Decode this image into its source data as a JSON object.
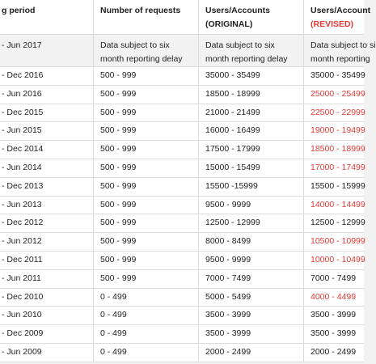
{
  "table": {
    "highlight_color": "#e53935",
    "header": [
      [
        "g period"
      ],
      [
        "Number of requests"
      ],
      [
        "Users/Accounts",
        "(ORIGINAL)"
      ],
      [
        "Users/Account",
        "(REVISED)"
      ]
    ],
    "header_revised_label_highlighted": true,
    "note_row": {
      "period": "- Jun 2017",
      "cells": [
        [
          "Data subject to six",
          "month reporting delay"
        ],
        [
          "Data subject to six",
          "month reporting delay"
        ],
        [
          "Data subject to si",
          "month reporting"
        ]
      ]
    },
    "rows": [
      {
        "period": "- Dec 2016",
        "requests": "500 - 999",
        "original": "35000 - 35499",
        "revised": "35000 - 35499",
        "revised_highlighted": false
      },
      {
        "period": "- Jun 2016",
        "requests": "500 - 999",
        "original": "18500 - 18999",
        "revised": "25000 - 25499",
        "revised_highlighted": true
      },
      {
        "period": "- Dec 2015",
        "requests": "500 - 999",
        "original": "21000 - 21499",
        "revised": "22500 - 22999",
        "revised_highlighted": true
      },
      {
        "period": "- Jun 2015",
        "requests": "500 - 999",
        "original": "16000 - 16499",
        "revised": "19000 - 19499",
        "revised_highlighted": true
      },
      {
        "period": "- Dec 2014",
        "requests": "500 - 999",
        "original": "17500 - 17999",
        "revised": "18500 - 18999",
        "revised_highlighted": true
      },
      {
        "period": "- Jun 2014",
        "requests": "500 - 999",
        "original": "15000 - 15499",
        "revised": "17000 - 17499",
        "revised_highlighted": true
      },
      {
        "period": "- Dec 2013",
        "requests": "500 - 999",
        "original": "15500 -15999",
        "revised": "15500 - 15999",
        "revised_highlighted": false
      },
      {
        "period": "- Jun 2013",
        "requests": "500 - 999",
        "original": "9500 - 9999",
        "revised": "14000 - 14499",
        "revised_highlighted": true
      },
      {
        "period": "- Dec 2012",
        "requests": "500 - 999",
        "original": "12500 - 12999",
        "revised": "12500 - 12999",
        "revised_highlighted": false
      },
      {
        "period": "- Jun 2012",
        "requests": "500 - 999",
        "original": "8000 - 8499",
        "revised": "10500 - 10999",
        "revised_highlighted": true
      },
      {
        "period": "- Dec 2011",
        "requests": "500 - 999",
        "original": "9500 - 9999",
        "revised": "10000 - 10499",
        "revised_highlighted": true
      },
      {
        "period": "- Jun 2011",
        "requests": "500 - 999",
        "original": "7000 - 7499",
        "revised": "7000 - 7499",
        "revised_highlighted": false
      },
      {
        "period": "- Dec 2010",
        "requests": "0 - 499",
        "original": "5000 - 5499",
        "revised": "4000 - 4499",
        "revised_highlighted": true
      },
      {
        "period": "- Jun 2010",
        "requests": "0 - 499",
        "original": "3500 - 3999",
        "revised": "3500 - 3999",
        "revised_highlighted": false
      },
      {
        "period": "- Dec 2009",
        "requests": "0 - 499",
        "original": "3500 - 3999",
        "revised": "3500 - 3999",
        "revised_highlighted": false
      },
      {
        "period": "- Jun 2009",
        "requests": "0 - 499",
        "original": "2000 - 2499",
        "revised": "2000 - 2499",
        "revised_highlighted": false
      }
    ]
  }
}
